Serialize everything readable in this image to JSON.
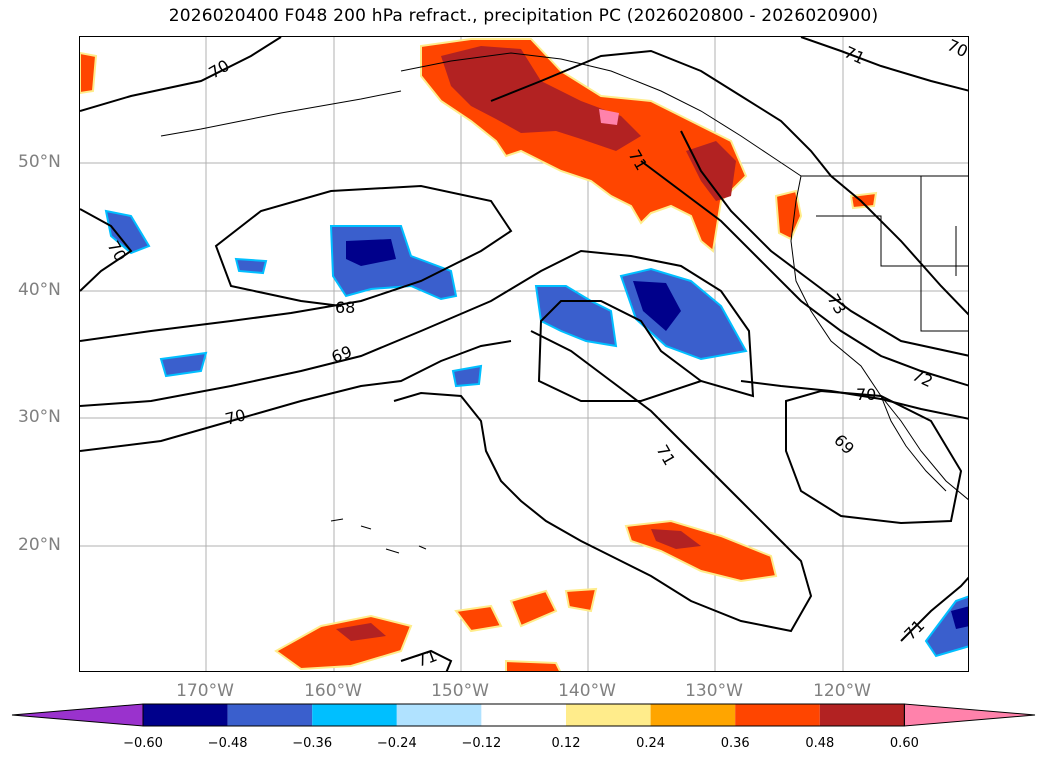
{
  "title": "2026020400 F048 200 hPa refract., precipitation PC (2026020800 - 2026020900)",
  "latitude_labels": [
    "50°N",
    "40°N",
    "30°N",
    "20°N"
  ],
  "longitude_labels": [
    "170°W",
    "160°W",
    "150°W",
    "140°W",
    "130°W",
    "120°W"
  ],
  "colorbar": {
    "tick_labels": [
      "−0.60",
      "−0.48",
      "−0.36",
      "−0.24",
      "−0.12",
      "0.12",
      "0.24",
      "0.36",
      "0.48",
      "0.60"
    ],
    "colors": [
      "#9a32cd",
      "#00008b",
      "#3a5fcd",
      "#00bfff",
      "#b0e2ff",
      "#ffffff",
      "#ffec8b",
      "#ffa500",
      "#ff4500",
      "#b22222",
      "#ff82ab"
    ]
  },
  "contour_labels": [
    "70",
    "70",
    "68",
    "69",
    "70",
    "71",
    "71",
    "71",
    "72",
    "73",
    "70",
    "69",
    "71",
    "71",
    "70"
  ],
  "colors": {
    "land_outline": "#000000",
    "grid": "#b0b0b0",
    "axis_text": "#808080"
  }
}
